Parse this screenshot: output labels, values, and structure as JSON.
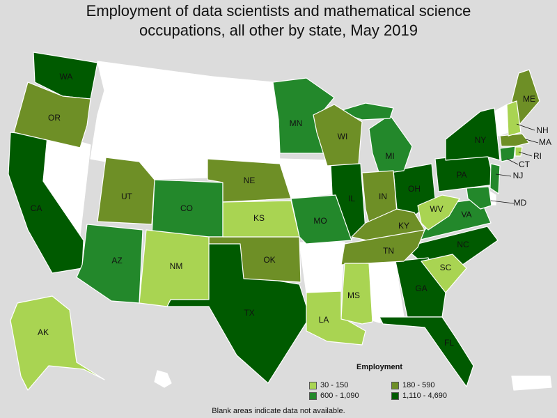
{
  "title_line1": "Employment of data scientists and mathematical science",
  "title_line2": "occupations, all other by state, May 2019",
  "legend": {
    "title": "Employment",
    "items": [
      {
        "label": "30 - 150",
        "color": "#a9d452"
      },
      {
        "label": "180 - 590",
        "color": "#6e8f26"
      },
      {
        "label": "600 - 1,090",
        "color": "#23882b"
      },
      {
        "label": "1,110 - 4,690",
        "color": "#005a00"
      }
    ]
  },
  "footnote": "Blank areas indicate data not available.",
  "colors": {
    "background": "#dcdcdc",
    "no_data": "#ffffff",
    "tier1": "#a9d452",
    "tier2": "#6e8f26",
    "tier3": "#23882b",
    "tier4": "#005a00"
  },
  "state_labels": {
    "WA": "WA",
    "OR": "OR",
    "CA": "CA",
    "AK": "AK",
    "UT": "UT",
    "AZ": "AZ",
    "CO": "CO",
    "NM": "NM",
    "NE": "NE",
    "KS": "KS",
    "OK": "OK",
    "TX": "TX",
    "MN": "MN",
    "MO": "MO",
    "LA": "LA",
    "WI": "WI",
    "IL": "IL",
    "MS": "MS",
    "MI": "MI",
    "IN": "IN",
    "TN": "TN",
    "KY": "KY",
    "OH": "OH",
    "GA": "GA",
    "FL": "FL",
    "WV": "WV",
    "VA": "VA",
    "NC": "NC",
    "SC": "SC",
    "PA": "PA",
    "NY": "NY",
    "ME": "ME",
    "NH": "NH",
    "MA": "MA",
    "RI": "RI",
    "CT": "CT",
    "NJ": "NJ",
    "MD": "MD"
  }
}
